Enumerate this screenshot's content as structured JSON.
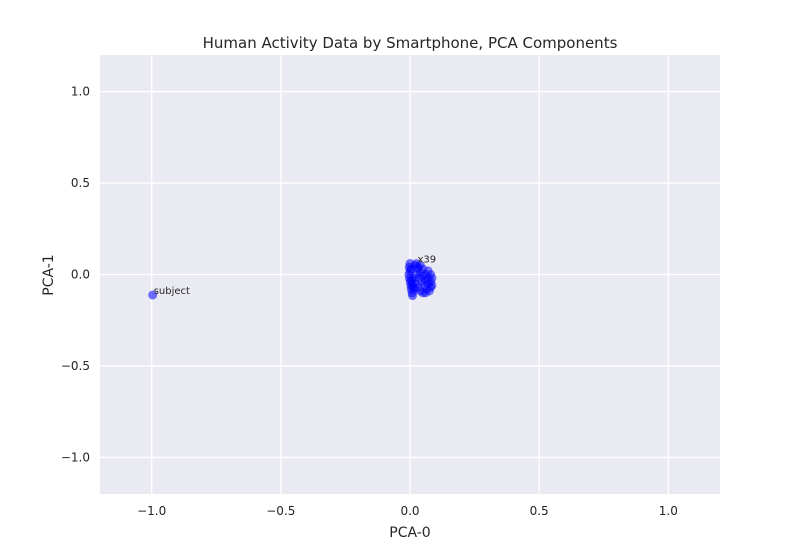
{
  "chart_data": {
    "type": "scatter",
    "title": "Human Activity Data by Smartphone, PCA Components",
    "xlabel": "PCA-0",
    "ylabel": "PCA-1",
    "xlim": [
      -1.2,
      1.2
    ],
    "ylim": [
      -1.2,
      1.2
    ],
    "xticks": [
      -1.0,
      -0.5,
      0.0,
      0.5,
      1.0
    ],
    "yticks": [
      -1.0,
      -0.5,
      0.0,
      0.5,
      1.0
    ],
    "xtick_labels": [
      "−1.0",
      "−0.5",
      "0.0",
      "0.5",
      "1.0"
    ],
    "ytick_labels": [
      "−1.0",
      "−0.5",
      "0.0",
      "0.5",
      "1.0"
    ],
    "grid": true,
    "style": {
      "plot_bg": "#eaeaf2",
      "grid_color": "#ffffff",
      "point_color": "#0000ff",
      "label_color": "#262626"
    },
    "series": [
      {
        "points": [
          {
            "x": -0.996,
            "y": -0.112,
            "label": "subject"
          },
          {
            "x": 0.0,
            "y": 0.06
          },
          {
            "x": -0.003,
            "y": 0.04
          },
          {
            "x": 0.0,
            "y": 0.02
          },
          {
            "x": -0.004,
            "y": 0.0
          },
          {
            "x": -0.002,
            "y": -0.02
          },
          {
            "x": 0.001,
            "y": -0.04
          },
          {
            "x": 0.003,
            "y": -0.06
          },
          {
            "x": 0.005,
            "y": -0.08
          },
          {
            "x": 0.008,
            "y": -0.1
          },
          {
            "x": 0.01,
            "y": -0.115
          },
          {
            "x": 0.006,
            "y": -0.03
          },
          {
            "x": 0.012,
            "y": -0.07
          },
          {
            "x": 0.004,
            "y": 0.03
          },
          {
            "x": 0.009,
            "y": -0.05
          }
        ]
      },
      {
        "points": [
          {
            "x": 0.02,
            "y": 0.05
          },
          {
            "x": 0.03,
            "y": 0.03
          },
          {
            "x": 0.04,
            "y": 0.01
          },
          {
            "x": 0.05,
            "y": -0.01
          },
          {
            "x": 0.06,
            "y": -0.03
          },
          {
            "x": 0.07,
            "y": -0.05
          },
          {
            "x": 0.08,
            "y": -0.07
          },
          {
            "x": 0.075,
            "y": -0.09
          },
          {
            "x": 0.065,
            "y": -0.08
          },
          {
            "x": 0.055,
            "y": -0.06
          },
          {
            "x": 0.045,
            "y": -0.04
          },
          {
            "x": 0.035,
            "y": -0.02
          },
          {
            "x": 0.025,
            "y": 0.0
          },
          {
            "x": 0.03,
            "y": 0.04
          },
          {
            "x": 0.04,
            "y": 0.05
          },
          {
            "x": 0.05,
            "y": 0.03
          },
          {
            "x": 0.06,
            "y": 0.0
          },
          {
            "x": 0.07,
            "y": -0.02
          },
          {
            "x": 0.08,
            "y": -0.04
          },
          {
            "x": 0.085,
            "y": -0.06
          },
          {
            "x": 0.02,
            "y": -0.05
          },
          {
            "x": 0.03,
            "y": -0.07
          },
          {
            "x": 0.04,
            "y": -0.09
          },
          {
            "x": 0.05,
            "y": -0.1
          },
          {
            "x": 0.06,
            "y": -0.1
          },
          {
            "x": 0.07,
            "y": 0.02
          },
          {
            "x": 0.08,
            "y": 0.0
          },
          {
            "x": 0.085,
            "y": -0.02
          },
          {
            "x": 0.015,
            "y": -0.02
          },
          {
            "x": 0.02,
            "y": -0.08
          },
          {
            "x": 0.025,
            "y": 0.06,
            "label": "x39"
          }
        ]
      }
    ]
  }
}
